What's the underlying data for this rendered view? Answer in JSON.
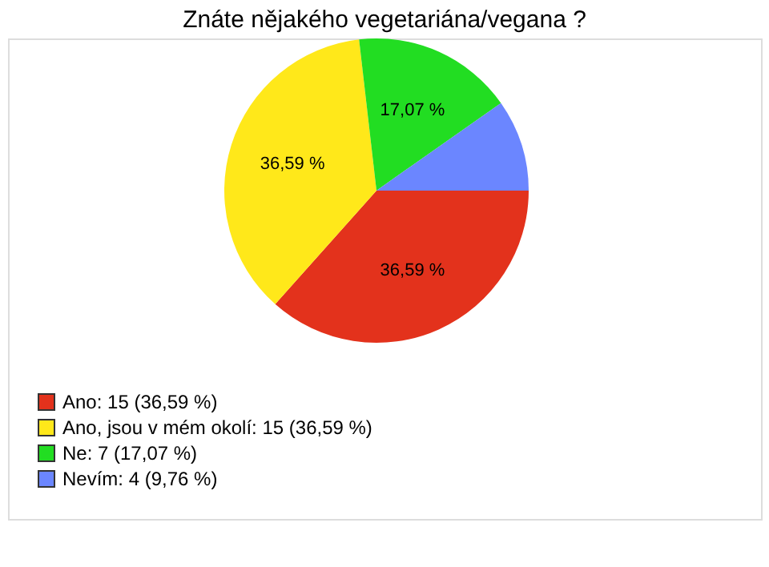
{
  "chart_data": {
    "type": "pie",
    "title": "Znáte nějakého vegetariána/vegana ?",
    "categories": [
      "Ano: 15 (36,59 %)",
      "Ano, jsou v mém okolí: 15 (36,59 %)",
      "Ne: 7 (17,07 %)",
      "Nevím: 4 (9,76 %)"
    ],
    "values": [
      36.59,
      36.59,
      17.07,
      9.76
    ],
    "colors": [
      "#e3321c",
      "#ffe81a",
      "#22dd22",
      "#6b86ff"
    ],
    "value_labels": [
      "36,59 %",
      "36,59 %",
      "17,07 %",
      null
    ],
    "legend": "bottom left"
  }
}
